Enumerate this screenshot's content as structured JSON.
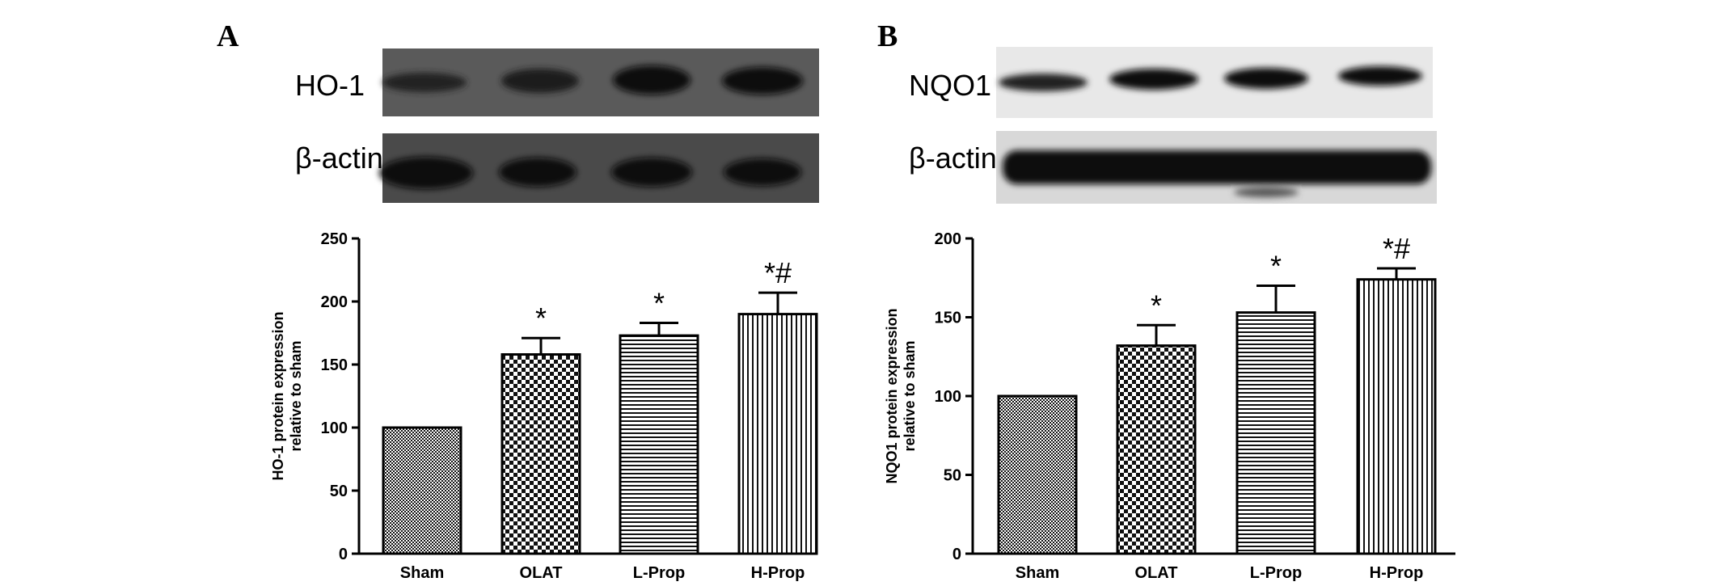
{
  "panels": {
    "A": {
      "letter": "A",
      "blots": [
        {
          "label": "HO-1",
          "bg": "#5a5a5a"
        },
        {
          "label": "β-actin",
          "bg": "#4a4a4a"
        }
      ]
    },
    "B": {
      "letter": "B",
      "blots": [
        {
          "label": "NQO1",
          "bg": "#e8e8e8"
        },
        {
          "label": "β-actin",
          "bg": "#d8d8d8"
        }
      ]
    }
  },
  "chart_data": [
    {
      "type": "bar",
      "categories": [
        "Sham",
        "OLAT",
        "L-Prop",
        "H-Prop"
      ],
      "values": [
        100,
        158,
        173,
        190
      ],
      "errors": [
        0,
        13,
        10,
        17
      ],
      "annotations": [
        "",
        "*",
        "*",
        "*#"
      ],
      "patterns": [
        "dots",
        "checker",
        "hlines",
        "vlines"
      ],
      "ylabel_line1": "HO-1 protein expression",
      "ylabel_line2": "relative to sham",
      "ylim": [
        0,
        250
      ],
      "yticks": [
        0,
        50,
        100,
        150,
        200,
        250
      ]
    },
    {
      "type": "bar",
      "categories": [
        "Sham",
        "OLAT",
        "L-Prop",
        "H-Prop"
      ],
      "values": [
        100,
        132,
        153,
        174
      ],
      "errors": [
        0,
        13,
        17,
        7
      ],
      "annotations": [
        "",
        "*",
        "*",
        "*#"
      ],
      "patterns": [
        "dots",
        "checker",
        "hlines",
        "vlines"
      ],
      "ylabel_line1": "NQO1 protein expression",
      "ylabel_line2": "relative to sham",
      "ylim": [
        0,
        200
      ],
      "yticks": [
        0,
        50,
        100,
        150,
        200
      ]
    }
  ]
}
